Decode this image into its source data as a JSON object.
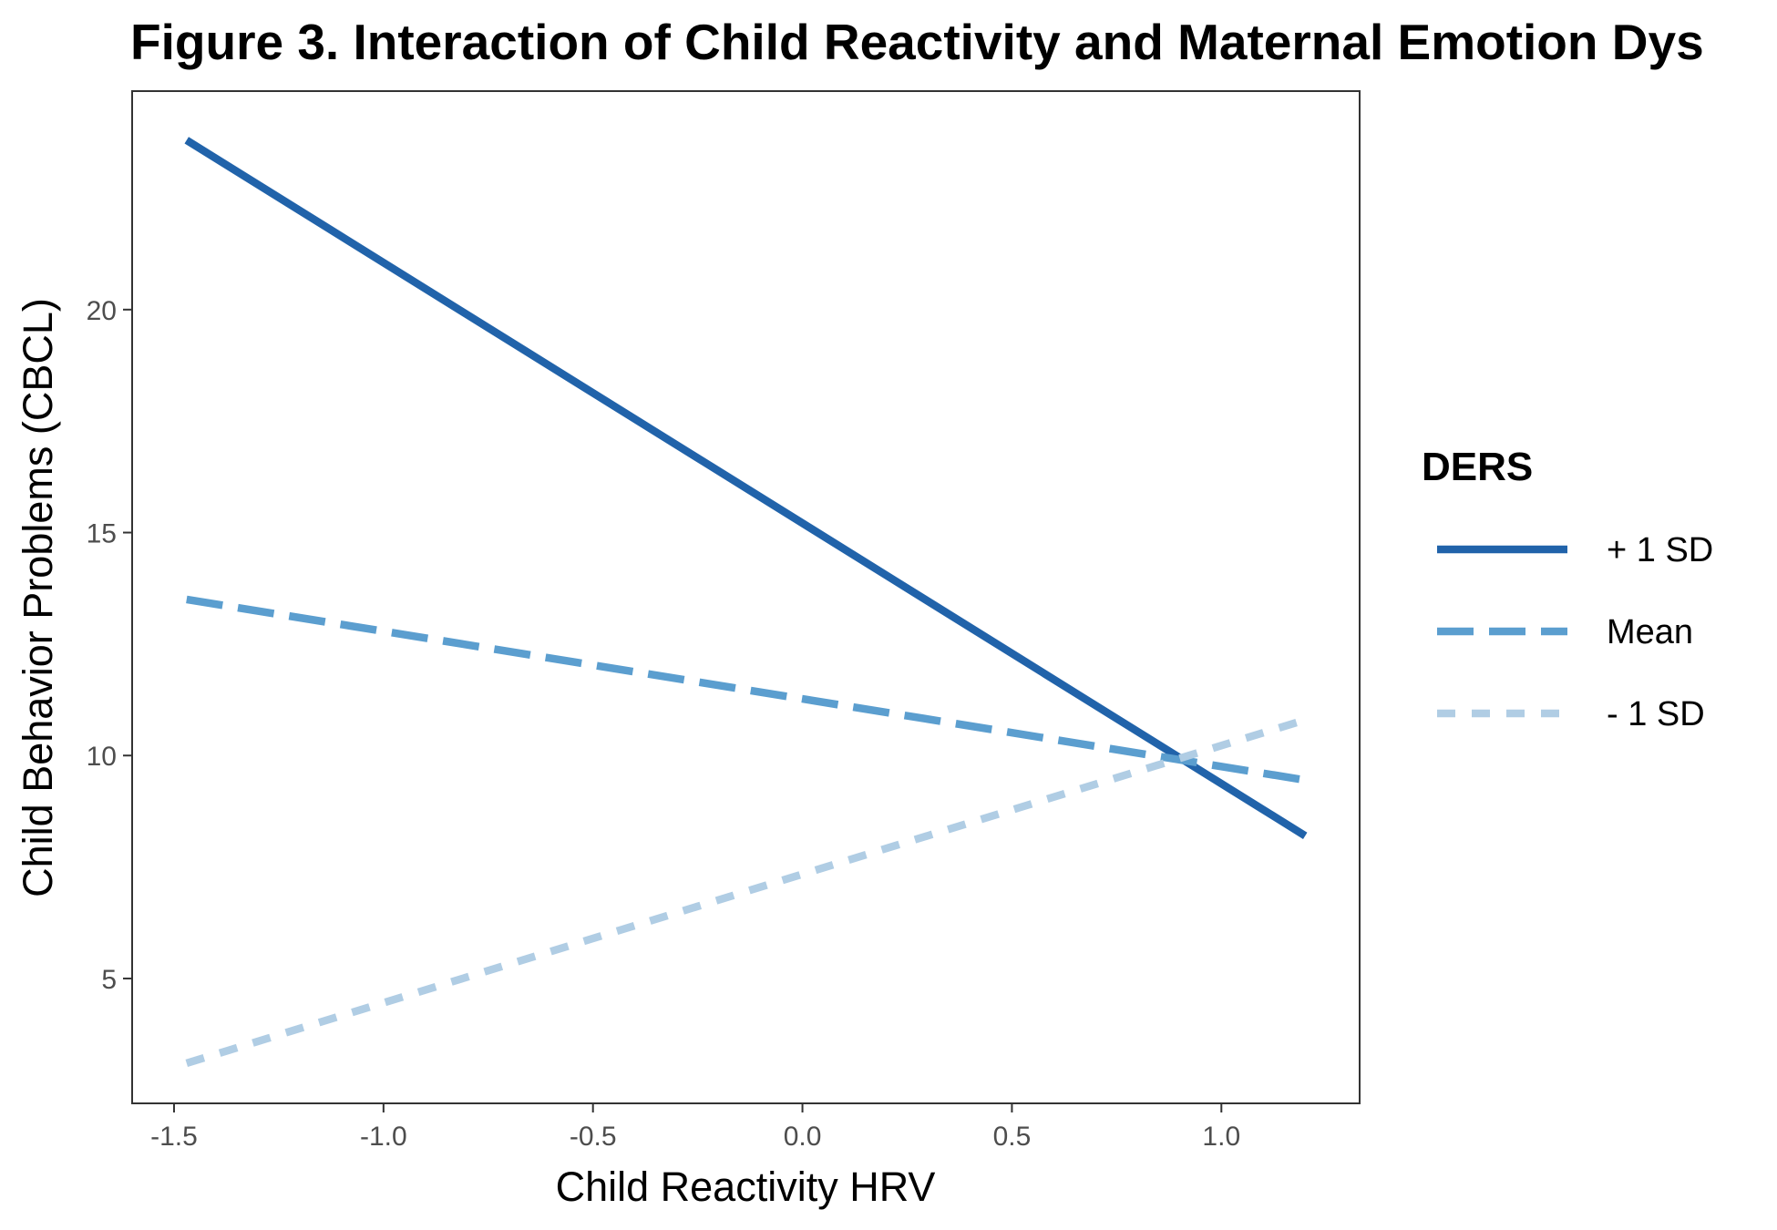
{
  "chart_data": {
    "type": "line",
    "title": "Figure 3. Interaction of Child Reactivity and Maternal Emotion Dys",
    "xlabel": "Child Reactivity HRV",
    "ylabel": "Child Behavior Problems (CBCL)",
    "xlim": [
      -1.6,
      1.33
    ],
    "ylim": [
      2.2,
      24.9
    ],
    "x_ticks": [
      -1.5,
      -1.0,
      -0.5,
      0.0,
      0.5,
      1.0
    ],
    "x_tick_labels": [
      "-1.5",
      "-1.0",
      "-0.5",
      "0.0",
      "0.5",
      "1.0"
    ],
    "y_ticks": [
      5,
      10,
      15,
      20
    ],
    "y_tick_labels": [
      "5",
      "10",
      "15",
      "20"
    ],
    "grid": false,
    "legend": {
      "title": "DERS",
      "position": "right"
    },
    "series": [
      {
        "name": "+ 1 SD",
        "color": "#2163aa",
        "dash": "solid",
        "x": [
          -1.47,
          1.2
        ],
        "y": [
          23.8,
          8.2
        ]
      },
      {
        "name": "Mean",
        "color": "#5b9ecf",
        "dash": "dashed",
        "x": [
          -1.47,
          1.2
        ],
        "y": [
          13.5,
          9.45
        ]
      },
      {
        "name": "- 1 SD",
        "color": "#b0cde4",
        "dash": "dotted",
        "x": [
          -1.47,
          1.2
        ],
        "y": [
          3.1,
          10.8
        ]
      }
    ]
  }
}
